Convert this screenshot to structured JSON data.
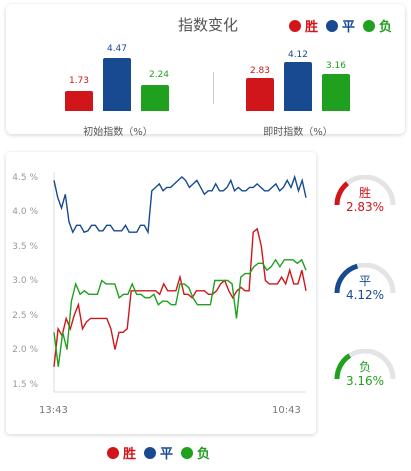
{
  "header": {
    "title": "指数变化"
  },
  "legend": [
    {
      "label": "胜",
      "color": "#d0161b"
    },
    {
      "label": "平",
      "color": "#174a91"
    },
    {
      "label": "负",
      "color": "#1fa01f"
    }
  ],
  "groups": [
    {
      "label": "初始指数（%）",
      "values": [
        "1.73",
        "4.47",
        "2.24"
      ],
      "numeric": [
        1.73,
        4.47,
        2.24
      ]
    },
    {
      "label": "即时指数（%）",
      "values": [
        "2.83",
        "4.12",
        "3.16"
      ],
      "numeric": [
        2.83,
        4.12,
        3.16
      ]
    }
  ],
  "chart_data": {
    "type": "line",
    "y_ticks": [
      "4.5 %",
      "4.0 %",
      "3.5 %",
      "3.0 %",
      "2.5 %",
      "2.0 %",
      "1.5 %"
    ],
    "y_tick_values": [
      4.5,
      4.0,
      3.5,
      3.0,
      2.5,
      2.0,
      1.5
    ],
    "ylim": [
      1.5,
      4.7
    ],
    "x_ticks": [
      "13:43",
      "10:43"
    ],
    "series": [
      {
        "name": "平",
        "color": "#174a91",
        "values": [
          4.45,
          4.2,
          4.05,
          4.25,
          3.85,
          3.7,
          3.8,
          3.8,
          3.7,
          3.72,
          3.8,
          3.8,
          3.72,
          3.72,
          3.8,
          3.8,
          3.72,
          3.72,
          3.72,
          3.8,
          3.7,
          3.7,
          3.7,
          3.8,
          3.8,
          3.7,
          4.3,
          4.35,
          4.4,
          4.3,
          4.35,
          4.35,
          4.4,
          4.45,
          4.5,
          4.45,
          4.35,
          4.4,
          4.45,
          4.35,
          4.25,
          4.3,
          4.3,
          4.4,
          4.3,
          4.3,
          4.35,
          4.45,
          4.3,
          4.35,
          4.3,
          4.3,
          4.35,
          4.35,
          4.4,
          4.35,
          4.3,
          4.3,
          4.35,
          4.4,
          4.3,
          4.35,
          4.45,
          4.35,
          4.5,
          4.3,
          4.45,
          4.2
        ]
      },
      {
        "name": "胜",
        "color": "#d0161b",
        "values": [
          1.75,
          2.3,
          2.2,
          2.45,
          2.3,
          2.5,
          2.65,
          2.3,
          2.4,
          2.45,
          2.45,
          2.45,
          2.45,
          2.45,
          2.3,
          2.0,
          2.25,
          2.25,
          2.3,
          2.85,
          2.85,
          2.85,
          2.85,
          2.85,
          2.85,
          2.85,
          2.8,
          2.95,
          2.85,
          2.85,
          2.85,
          3.05,
          2.8,
          2.8,
          2.75,
          2.85,
          2.85,
          2.85,
          2.8,
          2.8,
          2.85,
          2.95,
          3.0,
          2.85,
          2.75,
          2.85,
          2.9,
          2.85,
          2.85,
          3.7,
          3.75,
          3.5,
          3.0,
          2.95,
          2.95,
          2.95,
          3.05,
          2.95,
          3.15,
          2.95,
          2.95,
          3.15,
          2.85
        ]
      },
      {
        "name": "负",
        "color": "#1fa01f",
        "values": [
          2.25,
          1.75,
          2.25,
          2.0,
          2.7,
          2.95,
          2.8,
          2.85,
          2.8,
          2.8,
          2.8,
          3.0,
          2.95,
          2.95,
          2.95,
          2.75,
          2.8,
          2.8,
          2.95,
          2.8,
          2.8,
          2.75,
          2.75,
          2.8,
          2.65,
          2.7,
          2.7,
          2.65,
          2.65,
          2.95,
          2.95,
          2.9,
          2.75,
          2.65,
          2.65,
          2.65,
          2.65,
          3.0,
          3.0,
          3.0,
          3.0,
          2.95,
          2.45,
          3.05,
          3.1,
          3.1,
          3.2,
          3.25,
          3.25,
          3.15,
          3.2,
          3.3,
          3.2,
          3.3,
          3.3,
          3.3,
          3.25,
          3.3,
          3.15
        ]
      }
    ]
  },
  "gauges": [
    {
      "label": "胜",
      "value": "2.83%",
      "numeric": 2.83,
      "color": "#d0161b"
    },
    {
      "label": "平",
      "value": "4.12%",
      "numeric": 4.12,
      "color": "#174a91"
    },
    {
      "label": "负",
      "value": "3.16%",
      "numeric": 3.16,
      "color": "#1fa01f"
    }
  ]
}
